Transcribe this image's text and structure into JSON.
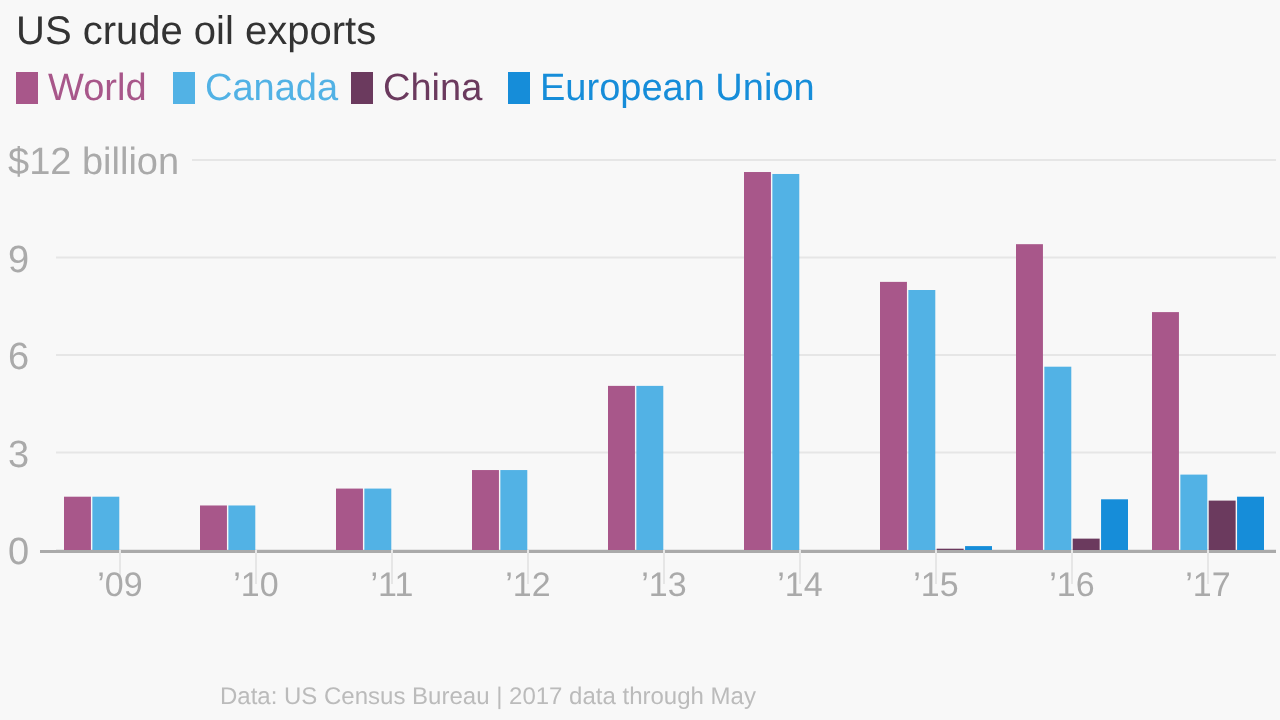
{
  "chart_data": {
    "type": "bar",
    "title": "US crude oil exports",
    "categories": [
      "’09",
      "’10",
      "’11",
      "’12",
      "’13",
      "’14",
      "’15",
      "’16",
      "’17"
    ],
    "series": [
      {
        "name": "World",
        "color": "#a8578a",
        "values": [
          1.64,
          1.37,
          1.89,
          2.46,
          5.05,
          11.63,
          8.25,
          9.41,
          7.32
        ]
      },
      {
        "name": "Canada",
        "color": "#52b2e5",
        "values": [
          1.64,
          1.37,
          1.89,
          2.46,
          5.05,
          11.57,
          8.0,
          5.64,
          2.32
        ]
      },
      {
        "name": "China",
        "color": "#6b3a5e",
        "values": [
          null,
          null,
          null,
          null,
          null,
          null,
          0.04,
          0.35,
          1.52
        ]
      },
      {
        "name": "European Union",
        "color": "#168dd9",
        "values": [
          null,
          null,
          null,
          null,
          null,
          null,
          0.12,
          1.56,
          1.64
        ]
      }
    ],
    "ylim": [
      0,
      12
    ],
    "yticks": [
      0,
      3,
      6,
      9,
      {
        "value": 12,
        "label": "$12 billion"
      }
    ],
    "grid": "y",
    "legend": "top",
    "annotations": [
      "Data: US Census Bureau | 2017 data through May"
    ]
  }
}
